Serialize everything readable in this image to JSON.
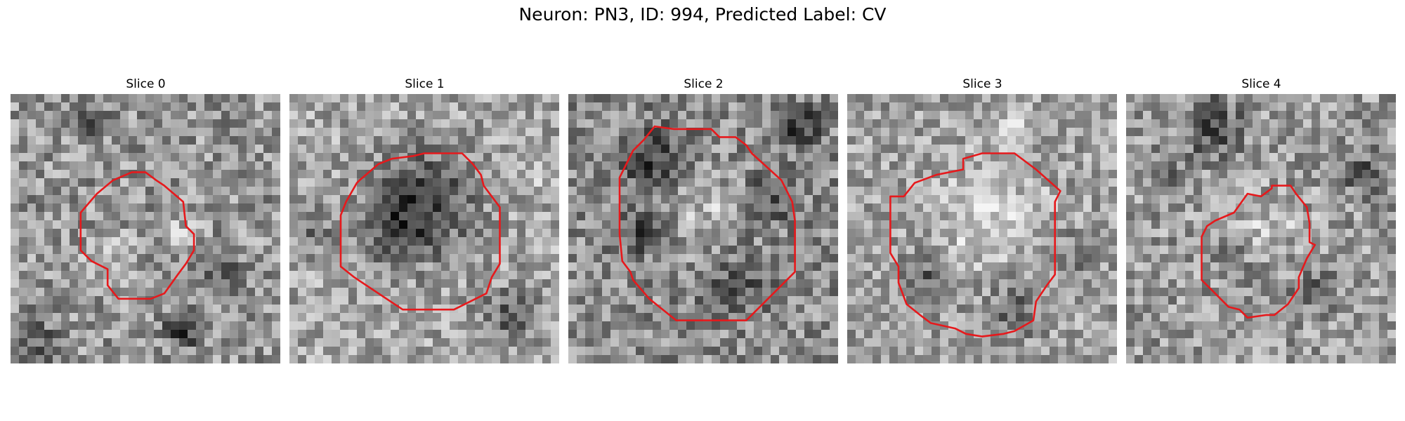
{
  "figure": {
    "title": "Neuron: PN3, ID: 994, Predicted Label: CV"
  },
  "slices": [
    {
      "title": "Slice 0"
    },
    {
      "title": "Slice 1"
    },
    {
      "title": "Slice 2"
    },
    {
      "title": "Slice 3"
    },
    {
      "title": "Slice 4"
    }
  ],
  "colors": {
    "contour": "#e6191c",
    "colormap": "gray"
  }
}
